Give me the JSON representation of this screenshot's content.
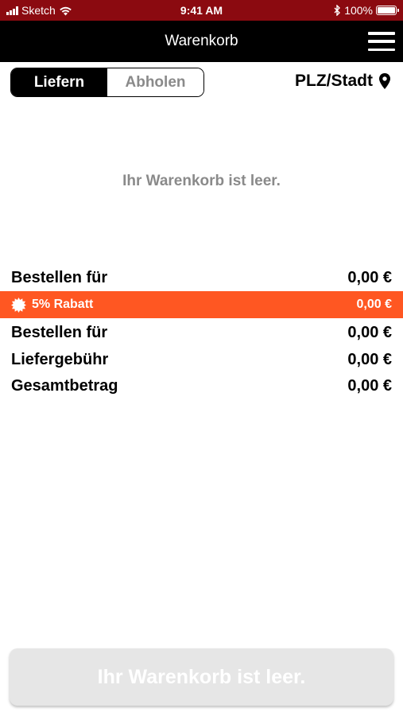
{
  "status_bar": {
    "carrier": "Sketch",
    "time": "9:41 AM",
    "battery": "100%",
    "battery_level": 1.0
  },
  "nav": {
    "title": "Warenkorb",
    "menu_icon": "hamburger-menu-icon"
  },
  "segment": {
    "deliver_label": "Liefern",
    "pickup_label": "Abholen",
    "selected": "Liefern"
  },
  "location": {
    "label": "PLZ/Stadt",
    "icon": "map-pin-icon"
  },
  "cart": {
    "empty_message": "Ihr Warenkorb ist leer."
  },
  "summary": {
    "rows": [
      {
        "label": "Bestellen für",
        "value": "0,00 €"
      },
      {
        "label": "5% Rabatt",
        "value": "0,00 €",
        "icon": "discount-badge-icon"
      },
      {
        "label": "Bestellen für",
        "value": "0,00 €"
      },
      {
        "label": "Liefergebühr",
        "value": "0,00 €"
      },
      {
        "label": "Gesamtbetrag",
        "value": "0,00 €"
      }
    ]
  },
  "checkout": {
    "label": "Ihr Warenkorb ist leer.",
    "enabled": false
  },
  "colors": {
    "status_bar_bg": "#8b0a10",
    "nav_bg": "#000000",
    "accent": "#ff5722",
    "muted_text": "#8a8a8a",
    "disabled_button": "#e6e6e6"
  }
}
